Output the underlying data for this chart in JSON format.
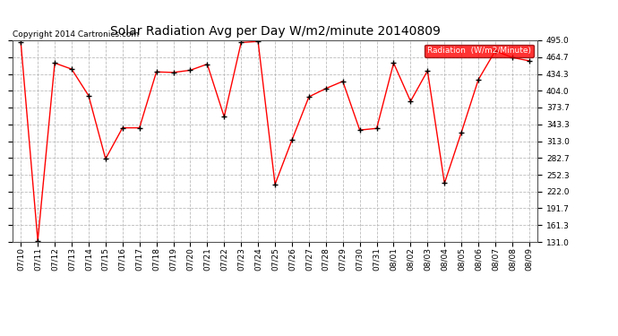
{
  "title": "Solar Radiation Avg per Day W/m2/minute 20140809",
  "copyright": "Copyright 2014 Cartronics.com",
  "legend_label": "Radiation  (W/m2/Minute)",
  "dates": [
    "07/10",
    "07/11",
    "07/12",
    "07/13",
    "07/14",
    "07/15",
    "07/16",
    "07/17",
    "07/18",
    "07/19",
    "07/20",
    "07/21",
    "07/22",
    "07/23",
    "07/24",
    "07/25",
    "07/26",
    "07/27",
    "07/28",
    "07/29",
    "07/30",
    "07/31",
    "08/01",
    "08/02",
    "08/03",
    "08/04",
    "08/05",
    "08/06",
    "08/07",
    "08/08",
    "08/09"
  ],
  "values": [
    491,
    133,
    454,
    443,
    395,
    281,
    337,
    337,
    438,
    437,
    441,
    452,
    357,
    491,
    493,
    235,
    315,
    393,
    408,
    421,
    333,
    336,
    454,
    385,
    440,
    237,
    329,
    424,
    476,
    464,
    458
  ],
  "yticks": [
    131.0,
    161.3,
    191.7,
    222.0,
    252.3,
    282.7,
    313.0,
    343.3,
    373.7,
    404.0,
    434.3,
    464.7,
    495.0
  ],
  "ymin": 131.0,
  "ymax": 495.0,
  "line_color": "red",
  "marker_color": "black",
  "bg_color": "#ffffff",
  "plot_bg_color": "#ffffff",
  "grid_color": "#bbbbbb",
  "title_fontsize": 10,
  "copyright_fontsize": 6.5,
  "legend_bg": "red",
  "legend_text_color": "white",
  "tick_fontsize": 6.5,
  "xlabel_rotation": 90
}
